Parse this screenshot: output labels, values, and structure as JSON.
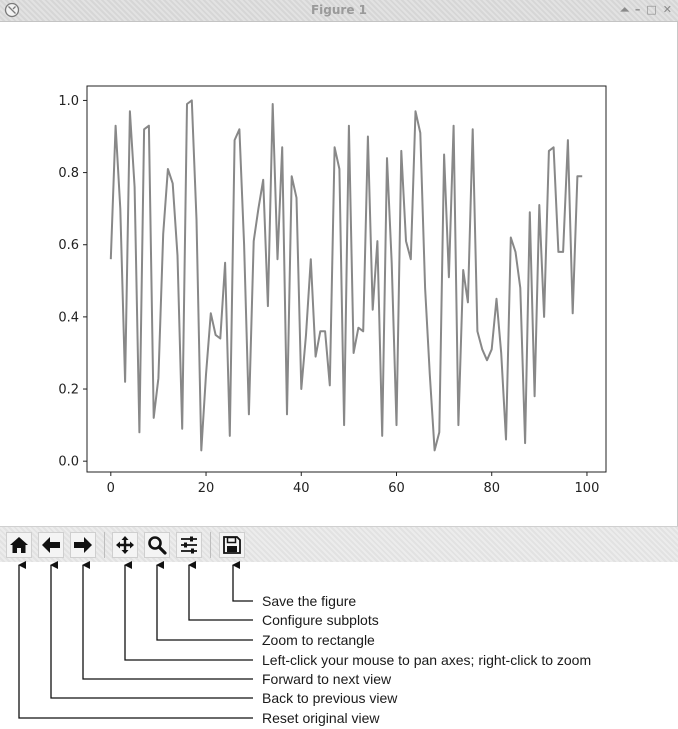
{
  "window": {
    "title": "Figure 1"
  },
  "window_controls": [
    "⏶",
    "–",
    "□",
    "✕"
  ],
  "chart_data": {
    "type": "line",
    "title": "",
    "xlabel": "",
    "ylabel": "",
    "xlim": [
      -5,
      104
    ],
    "ylim": [
      -0.03,
      1.04
    ],
    "xticks": [
      0,
      20,
      40,
      60,
      80,
      100
    ],
    "yticks": [
      0.0,
      0.2,
      0.4,
      0.6,
      0.8,
      1.0
    ],
    "xtick_labels": [
      "0",
      "20",
      "40",
      "60",
      "80",
      "100"
    ],
    "ytick_labels": [
      "0.0",
      "0.2",
      "0.4",
      "0.6",
      "0.8",
      "1.0"
    ],
    "grid": false,
    "line_color": "#888888",
    "series": [
      {
        "x": [
          0,
          1,
          2,
          3,
          4,
          5,
          6,
          7,
          8,
          9,
          10,
          11,
          12,
          13,
          14,
          15,
          16,
          17,
          18,
          19,
          20,
          21,
          22,
          23,
          24,
          25,
          26,
          27,
          28,
          29,
          30,
          31,
          32,
          33,
          34,
          35,
          36,
          37,
          38,
          39,
          40,
          41,
          42,
          43,
          44,
          45,
          46,
          47,
          48,
          49,
          50,
          51,
          52,
          53,
          54,
          55,
          56,
          57,
          58,
          59,
          60,
          61,
          62,
          63,
          64,
          65,
          66,
          67,
          68,
          69,
          70,
          71,
          72,
          73,
          74,
          75,
          76,
          77,
          78,
          79,
          80,
          81,
          82,
          83,
          84,
          85,
          86,
          87,
          88,
          89,
          90,
          91,
          92,
          93,
          94,
          95,
          96,
          97,
          98,
          99
        ],
        "y": [
          0.56,
          0.93,
          0.7,
          0.22,
          0.97,
          0.76,
          0.08,
          0.92,
          0.93,
          0.12,
          0.23,
          0.63,
          0.81,
          0.77,
          0.57,
          0.09,
          0.99,
          1.0,
          0.67,
          0.03,
          0.24,
          0.41,
          0.35,
          0.34,
          0.55,
          0.07,
          0.89,
          0.92,
          0.6,
          0.13,
          0.61,
          0.7,
          0.78,
          0.43,
          0.99,
          0.56,
          0.87,
          0.13,
          0.79,
          0.73,
          0.2,
          0.35,
          0.56,
          0.29,
          0.36,
          0.36,
          0.21,
          0.87,
          0.81,
          0.1,
          0.93,
          0.3,
          0.37,
          0.36,
          0.9,
          0.42,
          0.61,
          0.07,
          0.84,
          0.55,
          0.1,
          0.86,
          0.61,
          0.56,
          0.97,
          0.91,
          0.48,
          0.24,
          0.03,
          0.08,
          0.85,
          0.51,
          0.93,
          0.1,
          0.53,
          0.44,
          0.92,
          0.36,
          0.31,
          0.28,
          0.31,
          0.45,
          0.3,
          0.06,
          0.62,
          0.58,
          0.48,
          0.05,
          0.69,
          0.18,
          0.71,
          0.4,
          0.86,
          0.87,
          0.58,
          0.58,
          0.89,
          0.41,
          0.79,
          0.79
        ]
      }
    ]
  },
  "toolbar": {
    "buttons": [
      {
        "name": "home",
        "icon": "home-icon",
        "tooltip": "Reset original view"
      },
      {
        "name": "back",
        "icon": "arrow-left-icon",
        "tooltip": "Back to previous view"
      },
      {
        "name": "forward",
        "icon": "arrow-right-icon",
        "tooltip": "Forward to next view"
      },
      {
        "name": "pan",
        "icon": "move-icon",
        "tooltip": "Left-click your mouse to pan axes; right-click to zoom"
      },
      {
        "name": "zoom",
        "icon": "magnifier-icon",
        "tooltip": "Zoom to rectangle"
      },
      {
        "name": "subplots",
        "icon": "sliders-icon",
        "tooltip": "Configure subplots"
      },
      {
        "name": "save",
        "icon": "floppy-disk-icon",
        "tooltip": "Save the figure"
      }
    ]
  },
  "callouts": [
    "Save the figure",
    "Configure subplots",
    "Zoom to rectangle",
    "Left-click your mouse to pan axes; right-click to zoom",
    "Forward to next view",
    "Back to previous view",
    "Reset original view"
  ]
}
